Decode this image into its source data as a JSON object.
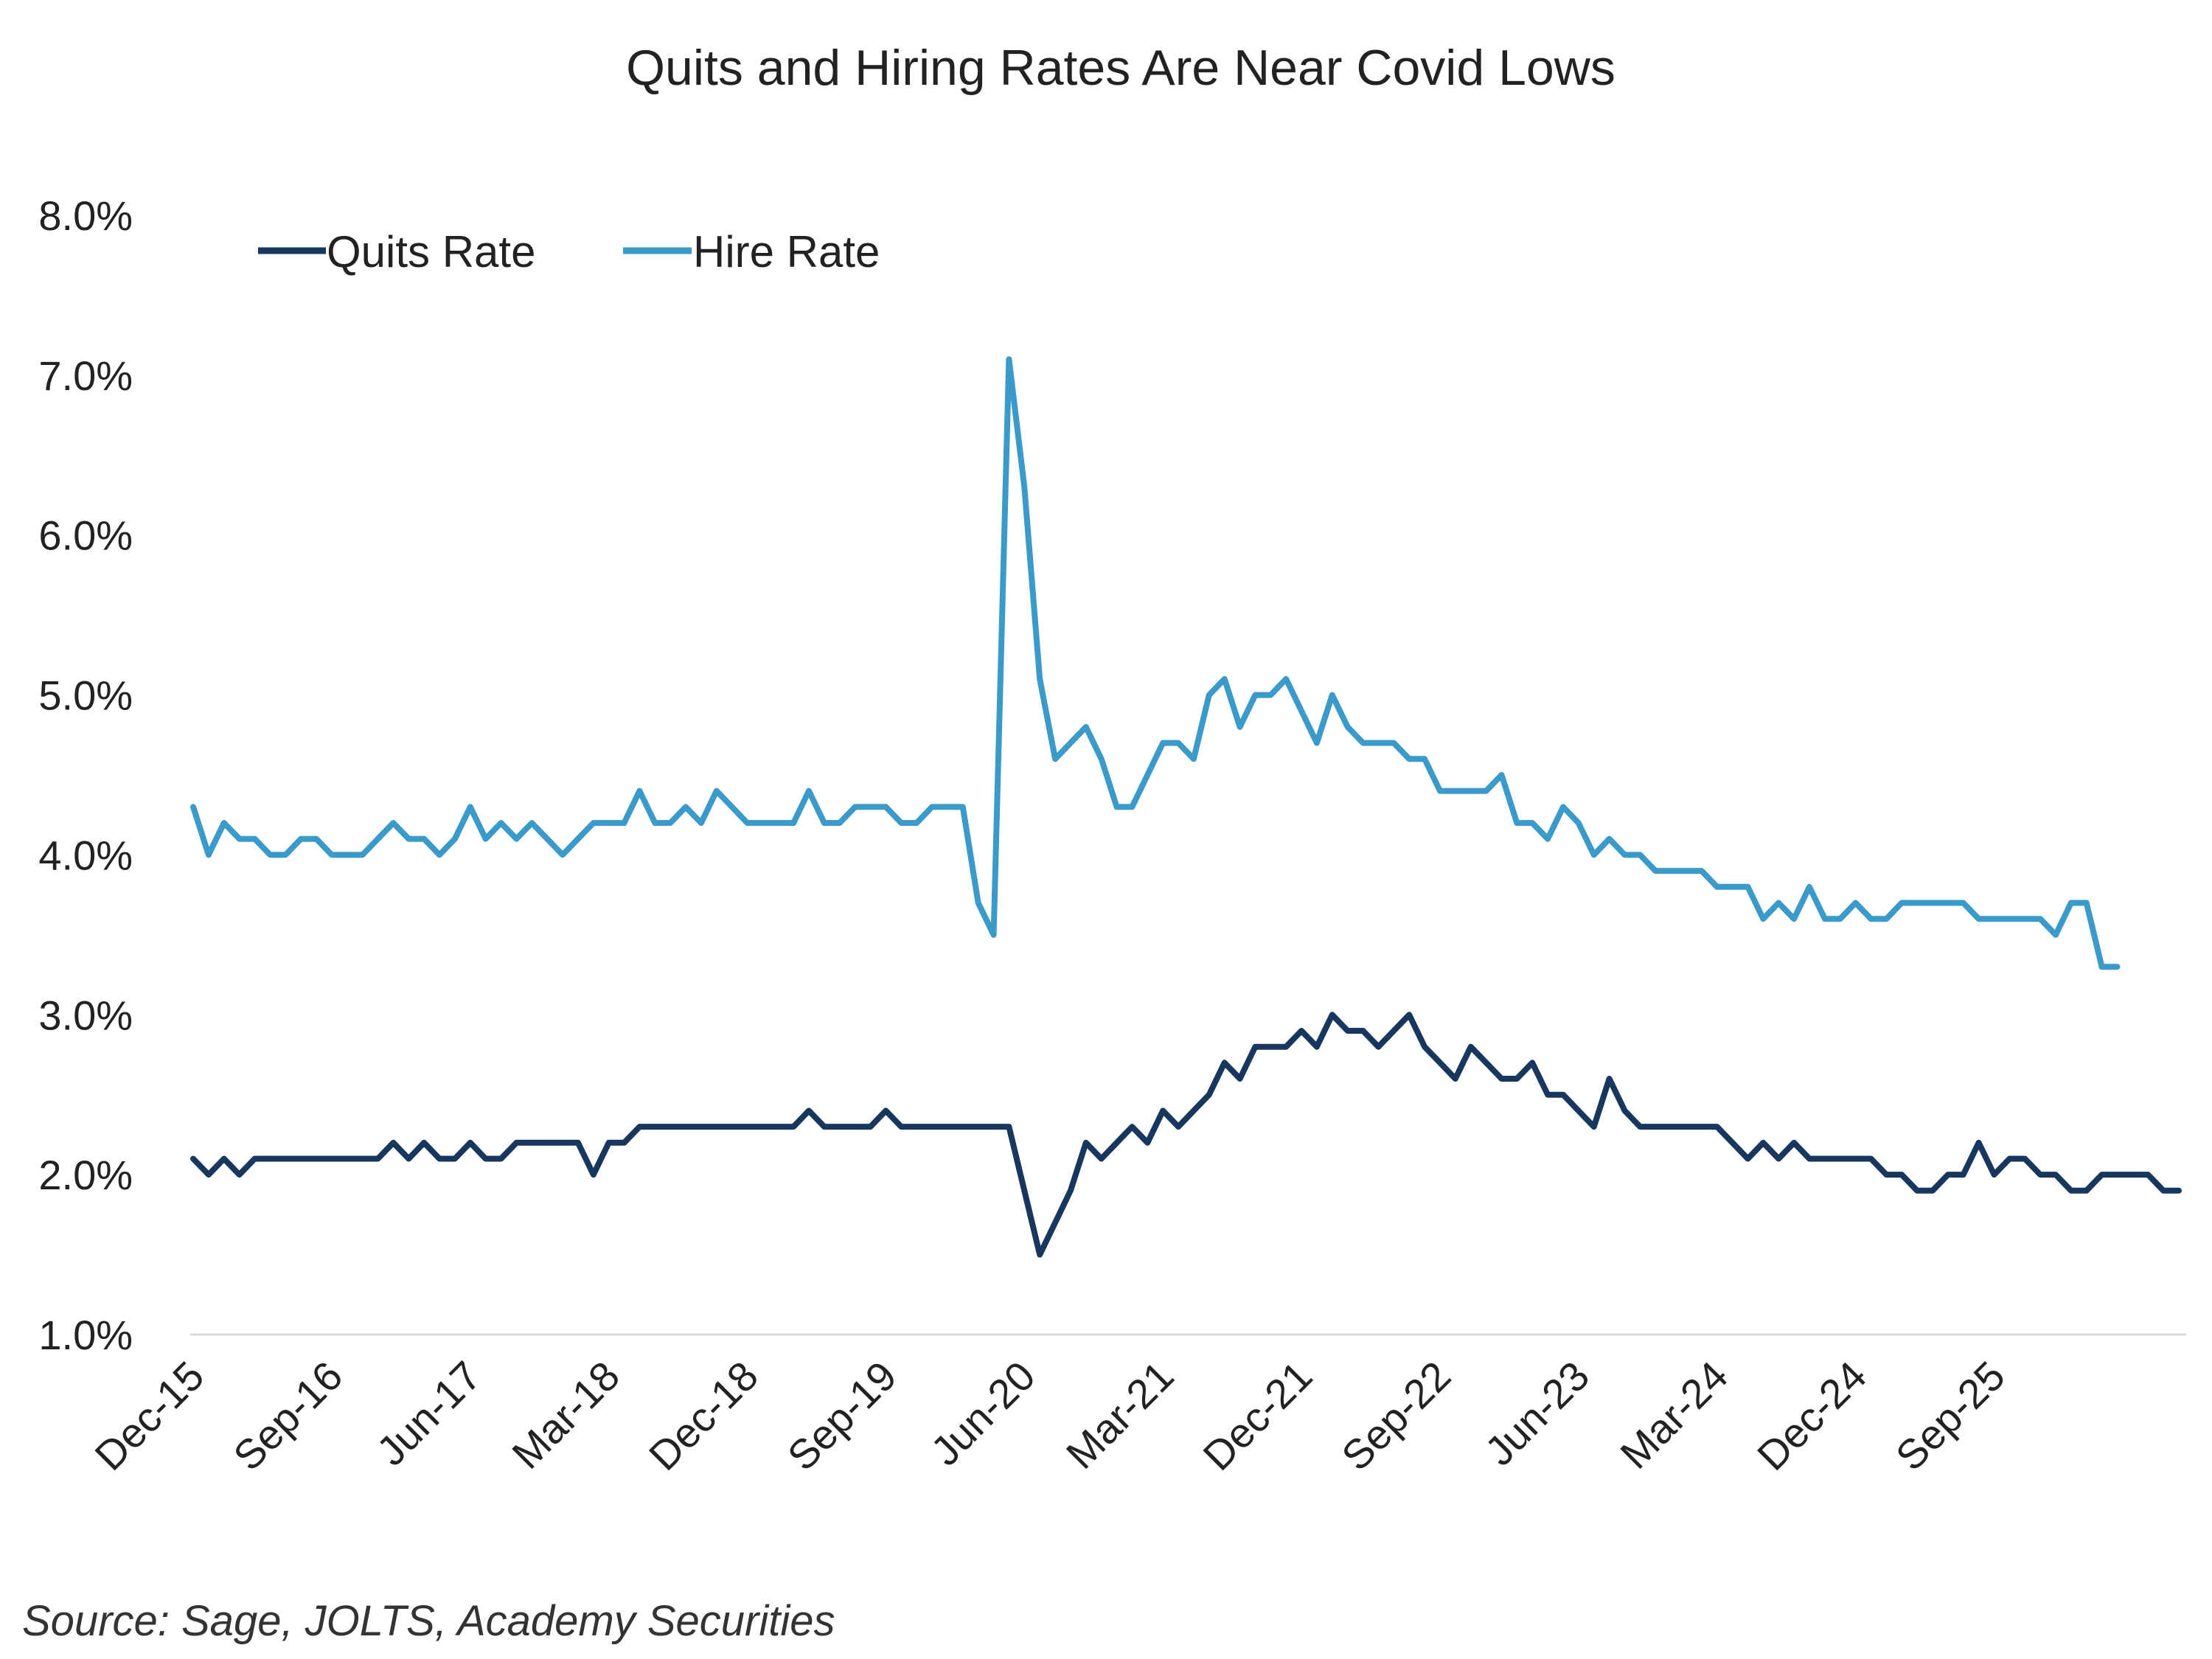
{
  "chart_data": {
    "type": "line",
    "title": "Quits and Hiring Rates Are Near Covid Lows",
    "source": "Source: Sage, JOLTS, Academy Securities",
    "xlabel": "",
    "ylabel": "",
    "ylim": [
      1.0,
      8.0
    ],
    "y_ticks": [
      1.0,
      2.0,
      3.0,
      4.0,
      5.0,
      6.0,
      7.0,
      8.0
    ],
    "y_tick_labels": [
      "1.0%",
      "2.0%",
      "3.0%",
      "4.0%",
      "5.0%",
      "6.0%",
      "7.0%",
      "8.0%"
    ],
    "x_start": "Dec-15",
    "x_tick_labels": [
      "Dec-15",
      "Sep-16",
      "Jun-17",
      "Mar-18",
      "Dec-18",
      "Sep-19",
      "Jun-20",
      "Mar-21",
      "Dec-21",
      "Sep-22",
      "Jun-23",
      "Mar-24",
      "Dec-24",
      "Sep-25"
    ],
    "x_tick_step_months": 9,
    "legend_position": "top-left",
    "grid": false,
    "colors": {
      "quits": "#17375e",
      "hires": "#3a9ac9"
    },
    "series": [
      {
        "name": "Quits Rate",
        "color": "#17375e",
        "values": [
          2.1,
          2.0,
          2.1,
          2.0,
          2.1,
          2.1,
          2.1,
          2.1,
          2.1,
          2.1,
          2.1,
          2.1,
          2.1,
          2.2,
          2.1,
          2.2,
          2.1,
          2.1,
          2.2,
          2.1,
          2.1,
          2.2,
          2.2,
          2.2,
          2.2,
          2.2,
          2.0,
          2.2,
          2.2,
          2.3,
          2.3,
          2.3,
          2.3,
          2.3,
          2.3,
          2.3,
          2.3,
          2.3,
          2.3,
          2.3,
          2.4,
          2.3,
          2.3,
          2.3,
          2.3,
          2.4,
          2.3,
          2.3,
          2.3,
          2.3,
          2.3,
          2.3,
          2.3,
          2.3,
          1.9,
          1.5,
          1.7,
          1.9,
          2.2,
          2.1,
          2.2,
          2.3,
          2.2,
          2.4,
          2.3,
          2.4,
          2.5,
          2.7,
          2.6,
          2.8,
          2.8,
          2.8,
          2.9,
          2.8,
          3.0,
          2.9,
          2.9,
          2.8,
          2.9,
          3.0,
          2.8,
          2.7,
          2.6,
          2.8,
          2.7,
          2.6,
          2.6,
          2.7,
          2.5,
          2.5,
          2.4,
          2.3,
          2.6,
          2.4,
          2.3,
          2.3,
          2.3,
          2.3,
          2.3,
          2.3,
          2.2,
          2.1,
          2.2,
          2.1,
          2.2,
          2.1,
          2.1,
          2.1,
          2.1,
          2.1,
          2.0,
          2.0,
          1.9,
          1.9,
          2.0,
          2.0,
          2.2,
          2.0,
          2.1,
          2.1,
          2.0,
          2.0,
          1.9,
          1.9,
          2.0,
          2.0,
          2.0,
          2.0,
          1.9,
          1.9
        ]
      },
      {
        "name": "Hire Rate",
        "color": "#3a9ac9",
        "values": [
          4.3,
          4.0,
          4.2,
          4.1,
          4.1,
          4.0,
          4.0,
          4.1,
          4.1,
          4.0,
          4.0,
          4.0,
          4.1,
          4.2,
          4.1,
          4.1,
          4.0,
          4.1,
          4.3,
          4.1,
          4.2,
          4.1,
          4.2,
          4.1,
          4.0,
          4.1,
          4.2,
          4.2,
          4.2,
          4.4,
          4.2,
          4.2,
          4.3,
          4.2,
          4.4,
          4.3,
          4.2,
          4.2,
          4.2,
          4.2,
          4.4,
          4.2,
          4.2,
          4.3,
          4.3,
          4.3,
          4.2,
          4.2,
          4.3,
          4.3,
          4.3,
          3.7,
          3.5,
          7.1,
          6.3,
          5.1,
          4.6,
          4.7,
          4.8,
          4.6,
          4.3,
          4.3,
          4.5,
          4.7,
          4.7,
          4.6,
          5.0,
          5.1,
          4.8,
          5.0,
          5.0,
          5.1,
          4.9,
          4.7,
          5.0,
          4.8,
          4.7,
          4.7,
          4.7,
          4.6,
          4.6,
          4.4,
          4.4,
          4.4,
          4.4,
          4.5,
          4.2,
          4.2,
          4.1,
          4.3,
          4.2,
          4.0,
          4.1,
          4.0,
          4.0,
          3.9,
          3.9,
          3.9,
          3.9,
          3.8,
          3.8,
          3.8,
          3.6,
          3.7,
          3.6,
          3.8,
          3.6,
          3.6,
          3.7,
          3.6,
          3.6,
          3.7,
          3.7,
          3.7,
          3.7,
          3.7,
          3.6,
          3.6,
          3.6,
          3.6,
          3.6,
          3.5,
          3.7,
          3.7,
          3.3,
          3.3
        ]
      }
    ]
  }
}
